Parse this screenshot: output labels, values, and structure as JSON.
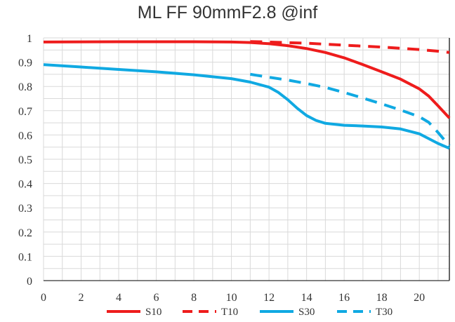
{
  "chart_data": {
    "type": "line",
    "title": "ML FF 90mmF2.8 @inf",
    "xlabel": "",
    "ylabel": "",
    "xlim": [
      0,
      21.6
    ],
    "ylim": [
      0,
      1
    ],
    "x_ticks": [
      "0",
      "2",
      "4",
      "6",
      "8",
      "10",
      "12",
      "14",
      "16",
      "18",
      "20"
    ],
    "y_ticks": [
      "0",
      "0.1",
      "0.2",
      "0.3",
      "0.4",
      "0.5",
      "0.6",
      "0.7",
      "0.8",
      "0.9",
      "1"
    ],
    "grid": true,
    "legend_position": "bottom",
    "series": [
      {
        "name": "S10",
        "color": "#ee1c1c",
        "dash": "solid",
        "x": [
          0,
          4,
          8,
          10,
          11,
          12,
          13,
          14,
          15,
          16,
          17,
          18,
          19,
          20,
          20.5,
          21,
          21.6
        ],
        "y": [
          0.983,
          0.984,
          0.984,
          0.983,
          0.981,
          0.976,
          0.968,
          0.956,
          0.94,
          0.918,
          0.89,
          0.86,
          0.83,
          0.79,
          0.76,
          0.72,
          0.67
        ]
      },
      {
        "name": "T10",
        "color": "#ee1c1c",
        "dash": "dashed",
        "x": [
          11,
          12,
          14,
          16,
          18,
          20,
          21,
          21.6
        ],
        "y": [
          0.985,
          0.983,
          0.978,
          0.97,
          0.962,
          0.952,
          0.945,
          0.94
        ]
      },
      {
        "name": "S30",
        "color": "#10a9e2",
        "dash": "solid",
        "x": [
          0,
          2,
          4,
          6,
          8,
          10,
          11,
          12,
          12.5,
          13,
          13.5,
          14,
          14.5,
          15,
          16,
          17,
          18,
          19,
          20,
          20.5,
          21,
          21.6
        ],
        "y": [
          0.89,
          0.88,
          0.87,
          0.86,
          0.848,
          0.832,
          0.818,
          0.797,
          0.775,
          0.745,
          0.71,
          0.68,
          0.66,
          0.648,
          0.64,
          0.637,
          0.633,
          0.625,
          0.605,
          0.585,
          0.565,
          0.545
        ]
      },
      {
        "name": "T30",
        "color": "#10a9e2",
        "dash": "dashed",
        "x": [
          11,
          12,
          13,
          14,
          15,
          16,
          17,
          18,
          19,
          20,
          20.5,
          21,
          21.6
        ],
        "y": [
          0.85,
          0.838,
          0.826,
          0.812,
          0.796,
          0.775,
          0.752,
          0.728,
          0.703,
          0.675,
          0.652,
          0.61,
          0.555
        ]
      }
    ]
  }
}
